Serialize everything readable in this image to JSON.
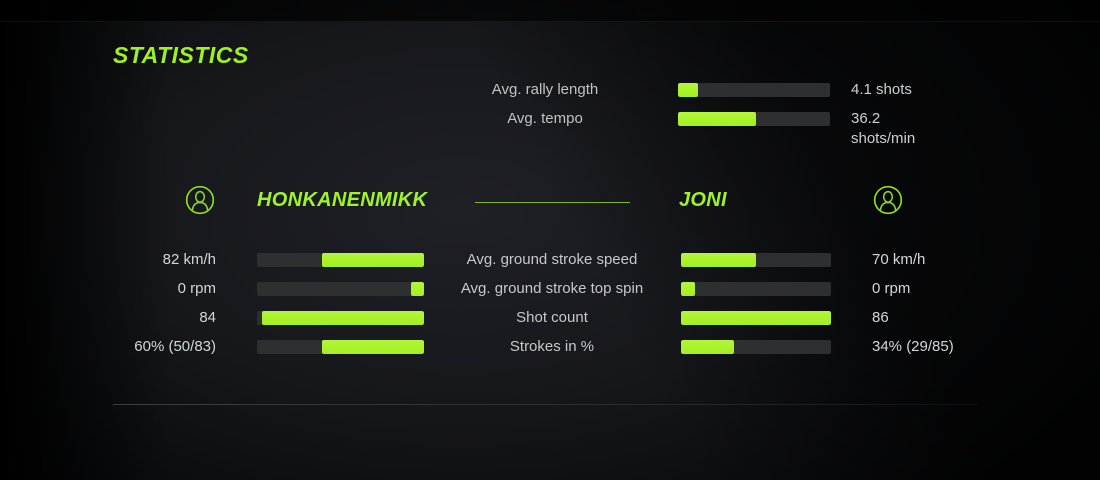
{
  "title": "STATISTICS",
  "colors": {
    "accent_green": "#a2ef22",
    "accent_green_bright": "#9df31f",
    "divider_green": "#7fb622",
    "bar_track": "#2e2f31",
    "label_text": "#c6c9ca",
    "value_text": "#d4d7d8",
    "background": "#16171b"
  },
  "icons": {
    "left_player": "avatar-icon",
    "right_player": "avatar-icon"
  },
  "overview": {
    "rows": [
      {
        "label": "Avg. rally length",
        "value": "4.1 shots",
        "percent": 13
      },
      {
        "label": "Avg. tempo",
        "value": "36.2 shots/min",
        "percent": 51
      }
    ]
  },
  "players": {
    "left": {
      "name": "HONKANENMIKK"
    },
    "right": {
      "name": "JONI"
    }
  },
  "stats": {
    "rows": [
      {
        "label": "Avg. ground stroke speed",
        "left_value": "82 km/h",
        "left_percent": 61,
        "right_value": "70 km/h",
        "right_percent": 50
      },
      {
        "label": "Avg. ground stroke top spin",
        "left_value": "0 rpm",
        "left_percent": 8,
        "right_value": "0 rpm",
        "right_percent": 9
      },
      {
        "label": "Shot count",
        "left_value": "84",
        "left_percent": 97,
        "right_value": "86",
        "right_percent": 100
      },
      {
        "label": "Strokes in %",
        "left_value": "60% (50/83)",
        "left_percent": 61,
        "right_value": "34% (29/85)",
        "right_percent": 35
      }
    ]
  }
}
